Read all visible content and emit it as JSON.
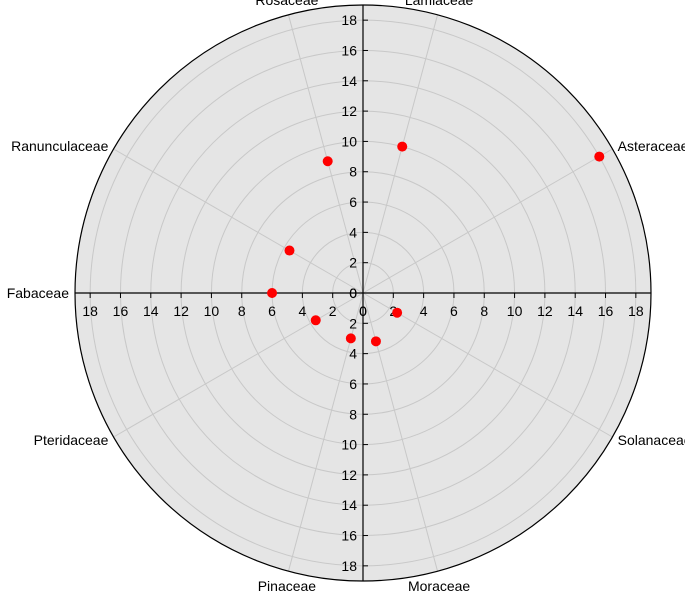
{
  "chart_data": {
    "type": "scatter",
    "subtype": "polar",
    "title": "",
    "radial_range": [
      0,
      19
    ],
    "radial_ticks": [
      0,
      2,
      4,
      6,
      8,
      10,
      12,
      14,
      16,
      18
    ],
    "grid": true,
    "background_color": "#e5e5e5",
    "point_color": "#ff0000",
    "categories": [
      {
        "name": "Asteraceae",
        "angle_deg": 30
      },
      {
        "name": "Lamiaceae",
        "angle_deg": 75
      },
      {
        "name": "Rosaceae",
        "angle_deg": 105
      },
      {
        "name": "Ranunculaceae",
        "angle_deg": 150
      },
      {
        "name": "Fabaceae",
        "angle_deg": 180
      },
      {
        "name": "Pteridaceae",
        "angle_deg": 210
      },
      {
        "name": "Pinaceae",
        "angle_deg": 255
      },
      {
        "name": "Moraceae",
        "angle_deg": 285
      },
      {
        "name": "Solanaceae",
        "angle_deg": 330
      }
    ],
    "points": [
      {
        "category": "Asteraceae",
        "value": 18.0
      },
      {
        "category": "Lamiaceae",
        "value": 10.0
      },
      {
        "category": "Rosaceae",
        "value": 9.0
      },
      {
        "category": "Ranunculaceae",
        "value": 5.6
      },
      {
        "category": "Fabaceae",
        "value": 6.0
      },
      {
        "category": "Pteridaceae",
        "value": 3.6
      },
      {
        "category": "Pinaceae",
        "value": 3.1
      },
      {
        "category": "Moraceae",
        "value": 3.3
      },
      {
        "category": "Solanaceae",
        "value": 2.6
      }
    ]
  }
}
